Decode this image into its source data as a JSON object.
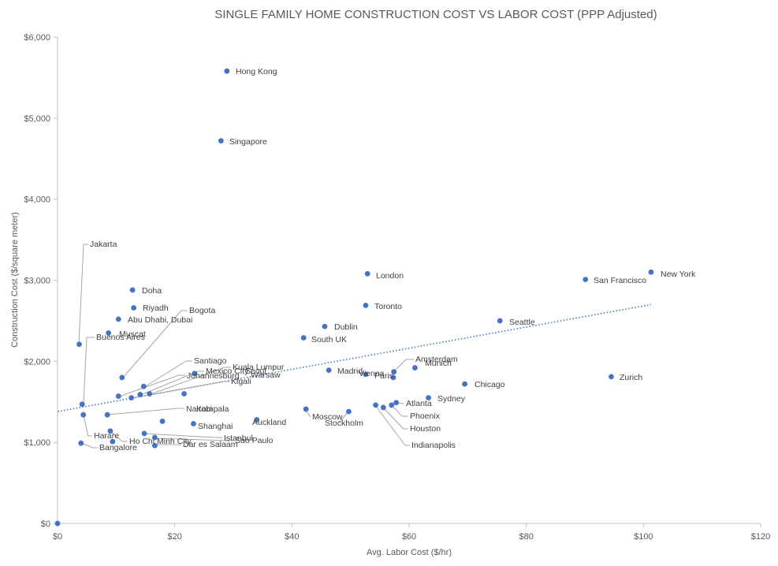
{
  "chart_data": {
    "type": "scatter",
    "title": "SINGLE FAMILY HOME CONSTRUCTION COST VS LABOR COST (PPP Adjusted)",
    "xlabel": "Avg. Labor Cost ($/hr)",
    "ylabel": "Construction Cost ($/square meter)",
    "xlim": [
      0,
      120
    ],
    "ylim": [
      0,
      6000
    ],
    "x_ticks": [
      0,
      20,
      40,
      60,
      80,
      100,
      120
    ],
    "y_ticks": [
      0,
      1000,
      2000,
      3000,
      4000,
      5000,
      6000
    ],
    "x_tick_labels": [
      "$0",
      "$20",
      "$40",
      "$60",
      "$80",
      "$100",
      "$120"
    ],
    "y_tick_labels": [
      "$0",
      "$1,000",
      "$2,000",
      "$3,000",
      "$4,000",
      "$5,000",
      "$6,000"
    ],
    "grid": false,
    "legend": "none",
    "colors": {
      "point": "#4472C4",
      "trendline": "#4472C4",
      "axis": "#bfbfbf",
      "leader": "#a6a6a6",
      "text": "#595959"
    },
    "trendline": {
      "type": "linear",
      "style": "dotted",
      "x": [
        0,
        101.3
      ],
      "y": [
        1380,
        2700
      ]
    },
    "points": [
      {
        "label": "Hong Kong",
        "x": 28.9,
        "y": 5580
      },
      {
        "label": "Singapore",
        "x": 27.9,
        "y": 4720
      },
      {
        "label": "Jakarta",
        "x": 3.7,
        "y": 2210
      },
      {
        "label": "London",
        "x": 52.9,
        "y": 3080
      },
      {
        "label": "New York",
        "x": 101.3,
        "y": 3100
      },
      {
        "label": "San Francisco",
        "x": 90.1,
        "y": 3010
      },
      {
        "label": "Doha",
        "x": 12.8,
        "y": 2880
      },
      {
        "label": "Riyadh",
        "x": 13.0,
        "y": 2660
      },
      {
        "label": "Abu Dhabi, Dubai",
        "x": 10.4,
        "y": 2520
      },
      {
        "label": "Muscat",
        "x": 8.7,
        "y": 2350
      },
      {
        "label": "Buenos Aires",
        "x": 4.2,
        "y": 1470
      },
      {
        "label": "Bogota",
        "x": 11.0,
        "y": 1800
      },
      {
        "label": "Toronto",
        "x": 52.6,
        "y": 2690
      },
      {
        "label": "Dublin",
        "x": 45.6,
        "y": 2430
      },
      {
        "label": "South UK",
        "x": 42.0,
        "y": 2290
      },
      {
        "label": "Seattle",
        "x": 75.5,
        "y": 2500
      },
      {
        "label": "Zurich",
        "x": 94.5,
        "y": 1810
      },
      {
        "label": "Chicago",
        "x": 69.5,
        "y": 1720
      },
      {
        "label": "Sydney",
        "x": 63.3,
        "y": 1550
      },
      {
        "label": "Amsterdam",
        "x": 57.4,
        "y": 1870
      },
      {
        "label": "Munich",
        "x": 61.0,
        "y": 1920
      },
      {
        "label": "Madrid",
        "x": 46.3,
        "y": 1890
      },
      {
        "label": "Vienna",
        "x": 52.6,
        "y": 1840
      },
      {
        "label": "Paris",
        "x": 57.3,
        "y": 1800
      },
      {
        "label": "Atlanta",
        "x": 57.8,
        "y": 1490
      },
      {
        "label": "Phoenix",
        "x": 57.0,
        "y": 1460
      },
      {
        "label": "Houston",
        "x": 55.6,
        "y": 1430
      },
      {
        "label": "Indianapolis",
        "x": 54.3,
        "y": 1460
      },
      {
        "label": "Moscow",
        "x": 42.4,
        "y": 1410
      },
      {
        "label": "Stockholm",
        "x": 49.7,
        "y": 1380
      },
      {
        "label": "Auckland",
        "x": 34.0,
        "y": 1280
      },
      {
        "label": "Santiago",
        "x": 14.7,
        "y": 1690
      },
      {
        "label": "Kuala Lumpur",
        "x": 15.7,
        "y": 1600
      },
      {
        "label": "Mexico City",
        "x": 14.1,
        "y": 1590
      },
      {
        "label": "Seoul",
        "x": 23.4,
        "y": 1850
      },
      {
        "label": "Johannesburg",
        "x": 10.4,
        "y": 1570
      },
      {
        "label": "Warsaw",
        "x": 21.6,
        "y": 1600
      },
      {
        "label": "Kigali",
        "x": 12.6,
        "y": 1550
      },
      {
        "label": "Nairobi",
        "x": 8.5,
        "y": 1340
      },
      {
        "label": "Kampala",
        "x": 17.9,
        "y": 1260
      },
      {
        "label": "Shanghai",
        "x": 23.2,
        "y": 1230
      },
      {
        "label": "Istanbul",
        "x": 14.8,
        "y": 1110
      },
      {
        "label": "Sao Paulo",
        "x": 16.6,
        "y": 1060
      },
      {
        "label": "Ho Chi Minh City",
        "x": 9.0,
        "y": 1140
      },
      {
        "label": "Dar es Salaam",
        "x": 16.6,
        "y": 960
      },
      {
        "label": "Harare",
        "x": 4.4,
        "y": 1340
      },
      {
        "label": "Bangalore",
        "x": 4.0,
        "y": 990
      },
      {
        "label": "",
        "x": 9.4,
        "y": 1010
      },
      {
        "label": "",
        "x": 0.0,
        "y": 0
      }
    ]
  }
}
